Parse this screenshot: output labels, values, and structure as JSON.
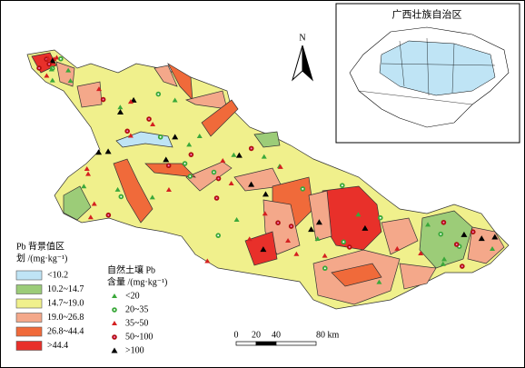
{
  "inset": {
    "title": "广西壮族自治区"
  },
  "north_arrow": {
    "label": "N"
  },
  "legend_background": {
    "title_line1": "Pb 背景值区",
    "title_line2": "划 /(mg·kg⁻¹)",
    "items": [
      "<10.2",
      "10.2~14.7",
      "14.7~19.0",
      "19.0~26.8",
      "26.8~44.4",
      ">44.4"
    ]
  },
  "legend_points": {
    "title_line1": "自然土壤 Pb",
    "title_line2": "含量 /(mg·kg⁻¹)",
    "items": [
      "<20",
      "20~35",
      "35~50",
      "50~100",
      ">100"
    ]
  },
  "scale_bar": {
    "labels": [
      "0",
      "20",
      "40",
      "80 km"
    ]
  }
}
